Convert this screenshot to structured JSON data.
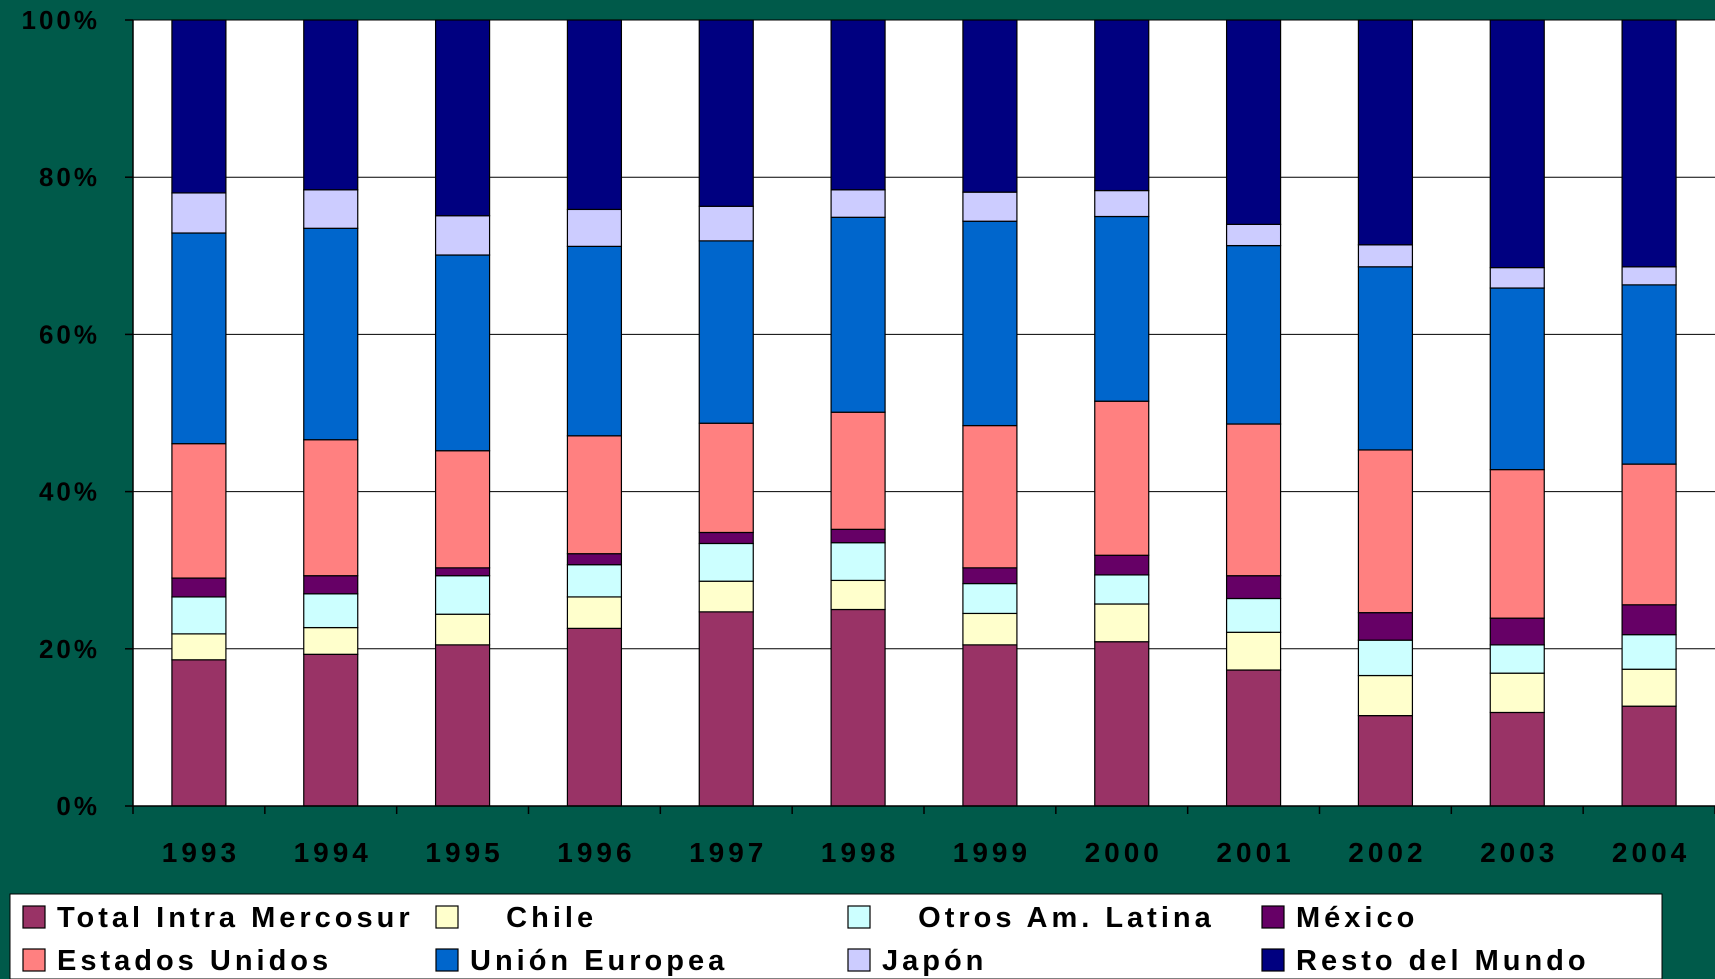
{
  "chart_data": {
    "type": "bar",
    "stacked": true,
    "percent": true,
    "categories": [
      "1993",
      "1994",
      "1995",
      "1996",
      "1997",
      "1998",
      "1999",
      "2000",
      "2001",
      "2002",
      "2003",
      "2004"
    ],
    "y_ticks": [
      "0%",
      "20%",
      "40%",
      "60%",
      "80%",
      "100%"
    ],
    "ylim": [
      0,
      100
    ],
    "grid": true,
    "legend_position": "bottom",
    "series": [
      {
        "name": "Total Intra Mercosur",
        "color": "#993366",
        "values": [
          18.6,
          19.3,
          20.5,
          22.6,
          24.7,
          25.0,
          20.5,
          20.9,
          17.3,
          11.5,
          11.9,
          12.7
        ]
      },
      {
        "name": "Chile",
        "color": "#ffffcc",
        "values": [
          3.3,
          3.4,
          3.9,
          4.0,
          3.9,
          3.7,
          4.0,
          4.8,
          4.8,
          5.1,
          5.0,
          4.7
        ]
      },
      {
        "name": "Otros Am. Latina",
        "color": "#ccffff",
        "values": [
          4.7,
          4.3,
          4.9,
          4.1,
          4.8,
          4.8,
          3.8,
          3.7,
          4.3,
          4.5,
          3.6,
          4.4
        ]
      },
      {
        "name": "México",
        "color": "#660066",
        "values": [
          2.4,
          2.3,
          1.0,
          1.4,
          1.4,
          1.7,
          2.0,
          2.5,
          2.9,
          3.5,
          3.4,
          3.8
        ]
      },
      {
        "name": "Estados Unidos",
        "color": "#ff8080",
        "values": [
          17.1,
          17.3,
          14.9,
          15.0,
          13.9,
          14.9,
          18.1,
          19.6,
          19.3,
          20.7,
          18.9,
          17.9
        ]
      },
      {
        "name": "Unión Europea",
        "color": "#0066cc",
        "values": [
          26.8,
          26.9,
          24.9,
          24.1,
          23.2,
          24.8,
          26.0,
          23.5,
          22.7,
          23.3,
          23.1,
          22.8
        ]
      },
      {
        "name": "Japón",
        "color": "#ccccff",
        "values": [
          5.1,
          4.9,
          5.0,
          4.7,
          4.4,
          3.5,
          3.7,
          3.3,
          2.7,
          2.8,
          2.6,
          2.3
        ]
      },
      {
        "name": "Resto del Mundo",
        "color": "#000080",
        "values": [
          22.0,
          21.6,
          24.9,
          24.1,
          23.7,
          21.6,
          21.9,
          21.7,
          26.0,
          28.6,
          31.5,
          31.4
        ]
      }
    ],
    "legend_labels": [
      {
        "series": 0,
        "text": "Total Intra Mercosur"
      },
      {
        "series": 1,
        "text": "   Chile"
      },
      {
        "series": 2,
        "text": "   Otros Am. Latina"
      },
      {
        "series": 3,
        "text": "México"
      },
      {
        "series": 4,
        "text": "Estados Unidos"
      },
      {
        "series": 5,
        "text": "Unión Europea"
      },
      {
        "series": 6,
        "text": "Japón"
      },
      {
        "series": 7,
        "text": "Resto del Mundo"
      }
    ]
  }
}
